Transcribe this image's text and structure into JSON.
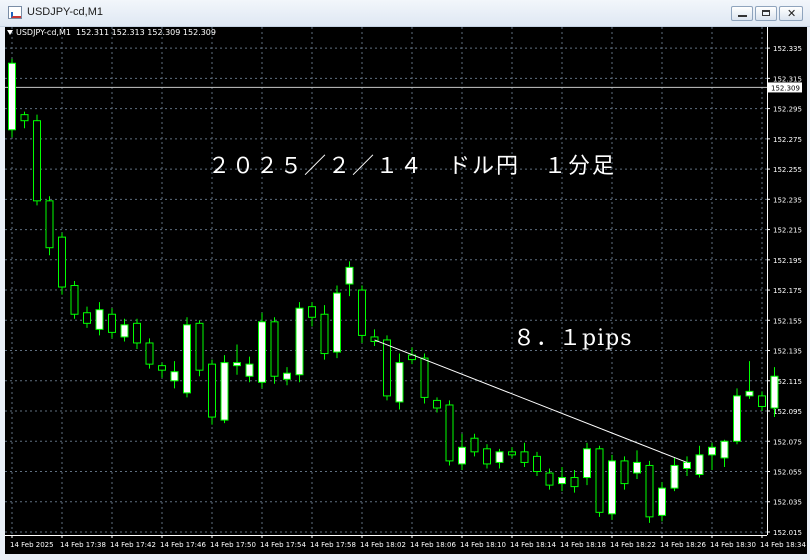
{
  "window": {
    "title": "USDJPY-cd,M1",
    "minimize_icon": "minimize-icon",
    "maximize_icon": "maximize-icon",
    "close_icon": "close-icon",
    "close_glyph": "✕"
  },
  "chart": {
    "symbol": "USDJPY-cd,M1",
    "ohlc": "152.311 152.313 152.309 152.309",
    "annotation_title": "２０２５／２／１４　ドル円　１分足",
    "annotation_pips": "８．１pips",
    "current_price_label": "152.309",
    "colors": {
      "background": "#000000",
      "grid": "#5f6f80",
      "bull_body": "#ffffff",
      "bear_body": "#000000",
      "candle_outline": "#00ff00",
      "axis_text": "#ffffff",
      "price_line": "#c8c8c8",
      "trendline": "#ffffff"
    }
  },
  "chart_data": {
    "type": "candlestick",
    "title": "",
    "price_axis_labels": [
      "152.335",
      "152.315",
      "152.295",
      "152.275",
      "152.255",
      "152.235",
      "152.215",
      "152.195",
      "152.175",
      "152.155",
      "152.135",
      "152.115",
      "152.095",
      "152.075",
      "152.055",
      "152.035",
      "152.015"
    ],
    "time_axis_labels": [
      "14 Feb 2025",
      "14 Feb 17:38",
      "14 Feb 17:42",
      "14 Feb 17:46",
      "14 Feb 17:50",
      "14 Feb 17:54",
      "14 Feb 17:58",
      "14 Feb 18:02",
      "14 Feb 18:06",
      "14 Feb 18:10",
      "14 Feb 18:14",
      "14 Feb 18:18",
      "14 Feb 18:22",
      "14 Feb 18:26",
      "14 Feb 18:30",
      "14 Feb 18:34"
    ],
    "ylim": [
      152.013,
      152.345
    ],
    "current_price": 152.309,
    "grid": true,
    "trendline": {
      "from": [
        29,
        152.142
      ],
      "to": [
        54,
        152.061
      ],
      "pips": 8.1
    },
    "candles": [
      {
        "o": 152.281,
        "h": 152.328,
        "l": 152.276,
        "c": 152.325
      },
      {
        "o": 152.291,
        "h": 152.293,
        "l": 152.282,
        "c": 152.287
      },
      {
        "o": 152.287,
        "h": 152.291,
        "l": 152.231,
        "c": 152.234
      },
      {
        "o": 152.234,
        "h": 152.237,
        "l": 152.198,
        "c": 152.203
      },
      {
        "o": 152.21,
        "h": 152.213,
        "l": 152.172,
        "c": 152.177
      },
      {
        "o": 152.178,
        "h": 152.181,
        "l": 152.156,
        "c": 152.159
      },
      {
        "o": 152.16,
        "h": 152.164,
        "l": 152.15,
        "c": 152.153
      },
      {
        "o": 152.149,
        "h": 152.167,
        "l": 152.145,
        "c": 152.162
      },
      {
        "o": 152.159,
        "h": 152.163,
        "l": 152.143,
        "c": 152.147
      },
      {
        "o": 152.144,
        "h": 152.156,
        "l": 152.141,
        "c": 152.152
      },
      {
        "o": 152.153,
        "h": 152.156,
        "l": 152.136,
        "c": 152.14
      },
      {
        "o": 152.14,
        "h": 152.143,
        "l": 152.123,
        "c": 152.126
      },
      {
        "o": 152.125,
        "h": 152.127,
        "l": 152.117,
        "c": 152.122
      },
      {
        "o": 152.115,
        "h": 152.128,
        "l": 152.11,
        "c": 152.121
      },
      {
        "o": 152.107,
        "h": 152.157,
        "l": 152.104,
        "c": 152.152
      },
      {
        "o": 152.153,
        "h": 152.155,
        "l": 152.118,
        "c": 152.122
      },
      {
        "o": 152.126,
        "h": 152.129,
        "l": 152.086,
        "c": 152.091
      },
      {
        "o": 152.089,
        "h": 152.132,
        "l": 152.087,
        "c": 152.127
      },
      {
        "o": 152.125,
        "h": 152.139,
        "l": 152.119,
        "c": 152.127
      },
      {
        "o": 152.118,
        "h": 152.131,
        "l": 152.114,
        "c": 152.126
      },
      {
        "o": 152.114,
        "h": 152.16,
        "l": 152.11,
        "c": 152.154
      },
      {
        "o": 152.154,
        "h": 152.157,
        "l": 152.113,
        "c": 152.118
      },
      {
        "o": 152.116,
        "h": 152.124,
        "l": 152.112,
        "c": 152.12
      },
      {
        "o": 152.119,
        "h": 152.167,
        "l": 152.114,
        "c": 152.163
      },
      {
        "o": 152.164,
        "h": 152.167,
        "l": 152.151,
        "c": 152.157
      },
      {
        "o": 152.159,
        "h": 152.165,
        "l": 152.129,
        "c": 152.133
      },
      {
        "o": 152.134,
        "h": 152.178,
        "l": 152.13,
        "c": 152.173
      },
      {
        "o": 152.179,
        "h": 152.194,
        "l": 152.171,
        "c": 152.19
      },
      {
        "o": 152.175,
        "h": 152.178,
        "l": 152.14,
        "c": 152.145
      },
      {
        "o": 152.144,
        "h": 152.149,
        "l": 152.138,
        "c": 152.141
      },
      {
        "o": 152.142,
        "h": 152.145,
        "l": 152.102,
        "c": 152.105
      },
      {
        "o": 152.101,
        "h": 152.133,
        "l": 152.096,
        "c": 152.127
      },
      {
        "o": 152.132,
        "h": 152.137,
        "l": 152.126,
        "c": 152.129
      },
      {
        "o": 152.13,
        "h": 152.133,
        "l": 152.1,
        "c": 152.104
      },
      {
        "o": 152.102,
        "h": 152.104,
        "l": 152.094,
        "c": 152.097
      },
      {
        "o": 152.099,
        "h": 152.102,
        "l": 152.059,
        "c": 152.062
      },
      {
        "o": 152.06,
        "h": 152.08,
        "l": 152.056,
        "c": 152.071
      },
      {
        "o": 152.077,
        "h": 152.08,
        "l": 152.065,
        "c": 152.068
      },
      {
        "o": 152.07,
        "h": 152.073,
        "l": 152.057,
        "c": 152.06
      },
      {
        "o": 152.061,
        "h": 152.07,
        "l": 152.057,
        "c": 152.068
      },
      {
        "o": 152.068,
        "h": 152.071,
        "l": 152.064,
        "c": 152.066
      },
      {
        "o": 152.068,
        "h": 152.074,
        "l": 152.058,
        "c": 152.061
      },
      {
        "o": 152.065,
        "h": 152.068,
        "l": 152.052,
        "c": 152.055
      },
      {
        "o": 152.054,
        "h": 152.057,
        "l": 152.043,
        "c": 152.046
      },
      {
        "o": 152.047,
        "h": 152.058,
        "l": 152.042,
        "c": 152.051
      },
      {
        "o": 152.051,
        "h": 152.056,
        "l": 152.041,
        "c": 152.045
      },
      {
        "o": 152.051,
        "h": 152.074,
        "l": 152.046,
        "c": 152.07
      },
      {
        "o": 152.07,
        "h": 152.072,
        "l": 152.025,
        "c": 152.028
      },
      {
        "o": 152.027,
        "h": 152.066,
        "l": 152.023,
        "c": 152.062
      },
      {
        "o": 152.062,
        "h": 152.065,
        "l": 152.043,
        "c": 152.047
      },
      {
        "o": 152.054,
        "h": 152.069,
        "l": 152.05,
        "c": 152.061
      },
      {
        "o": 152.059,
        "h": 152.062,
        "l": 152.021,
        "c": 152.025
      },
      {
        "o": 152.026,
        "h": 152.048,
        "l": 152.022,
        "c": 152.044
      },
      {
        "o": 152.044,
        "h": 152.064,
        "l": 152.042,
        "c": 152.059
      },
      {
        "o": 152.057,
        "h": 152.065,
        "l": 152.052,
        "c": 152.061
      },
      {
        "o": 152.053,
        "h": 152.072,
        "l": 152.051,
        "c": 152.066
      },
      {
        "o": 152.066,
        "h": 152.074,
        "l": 152.056,
        "c": 152.071
      },
      {
        "o": 152.064,
        "h": 152.076,
        "l": 152.058,
        "c": 152.075
      },
      {
        "o": 152.075,
        "h": 152.11,
        "l": 152.073,
        "c": 152.105
      },
      {
        "o": 152.105,
        "h": 152.128,
        "l": 152.103,
        "c": 152.108
      },
      {
        "o": 152.105,
        "h": 152.108,
        "l": 152.095,
        "c": 152.098
      },
      {
        "o": 152.097,
        "h": 152.124,
        "l": 152.091,
        "c": 152.118
      }
    ]
  }
}
